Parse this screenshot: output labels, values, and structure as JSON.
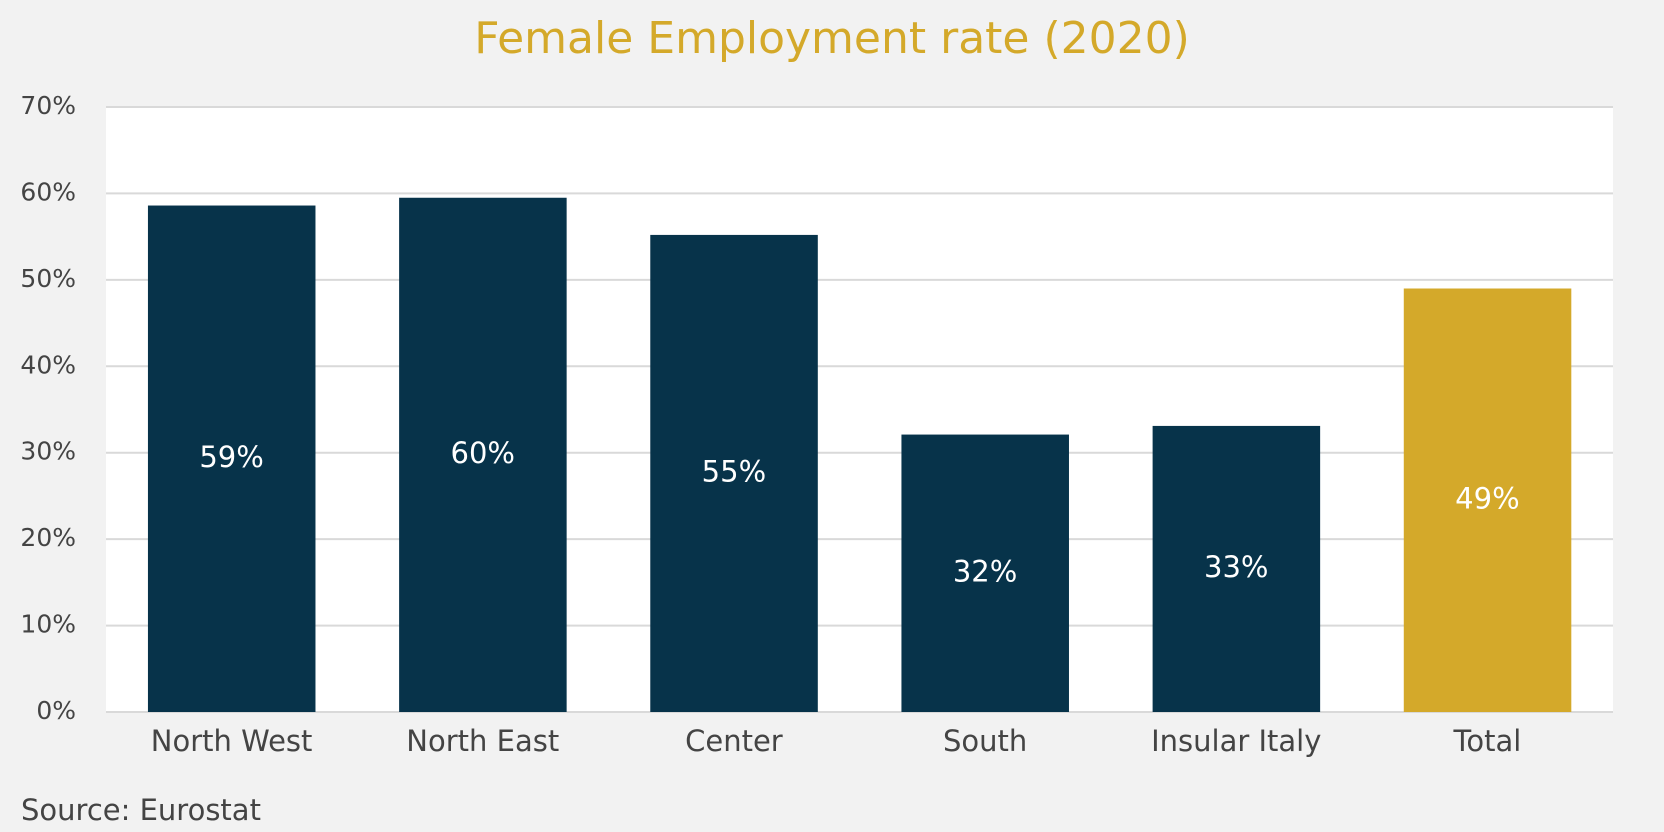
{
  "chart_data": {
    "type": "bar",
    "title": "Female Employment rate (2020)",
    "categories": [
      "North West",
      "North East",
      "Center",
      "South",
      "Insular Italy",
      "Total"
    ],
    "values": [
      58.6,
      59.5,
      55.2,
      32.1,
      33.1,
      49.0
    ],
    "value_labels": [
      "59%",
      "60%",
      "55%",
      "32%",
      "33%",
      "49%"
    ],
    "colors": [
      "#07334a",
      "#07334a",
      "#07334a",
      "#07334a",
      "#07334a",
      "#d4a92a"
    ],
    "ylim": [
      0,
      70
    ],
    "yticks": [
      {
        "value": 0,
        "label": "0%"
      },
      {
        "value": 10,
        "label": "10%"
      },
      {
        "value": 20,
        "label": "20%"
      },
      {
        "value": 30,
        "label": "30%"
      },
      {
        "value": 40,
        "label": "40%"
      },
      {
        "value": 50,
        "label": "50%"
      },
      {
        "value": 60,
        "label": "60%"
      },
      {
        "value": 70,
        "label": "70%"
      }
    ],
    "grid": true,
    "source": "Source: Eurostat"
  }
}
